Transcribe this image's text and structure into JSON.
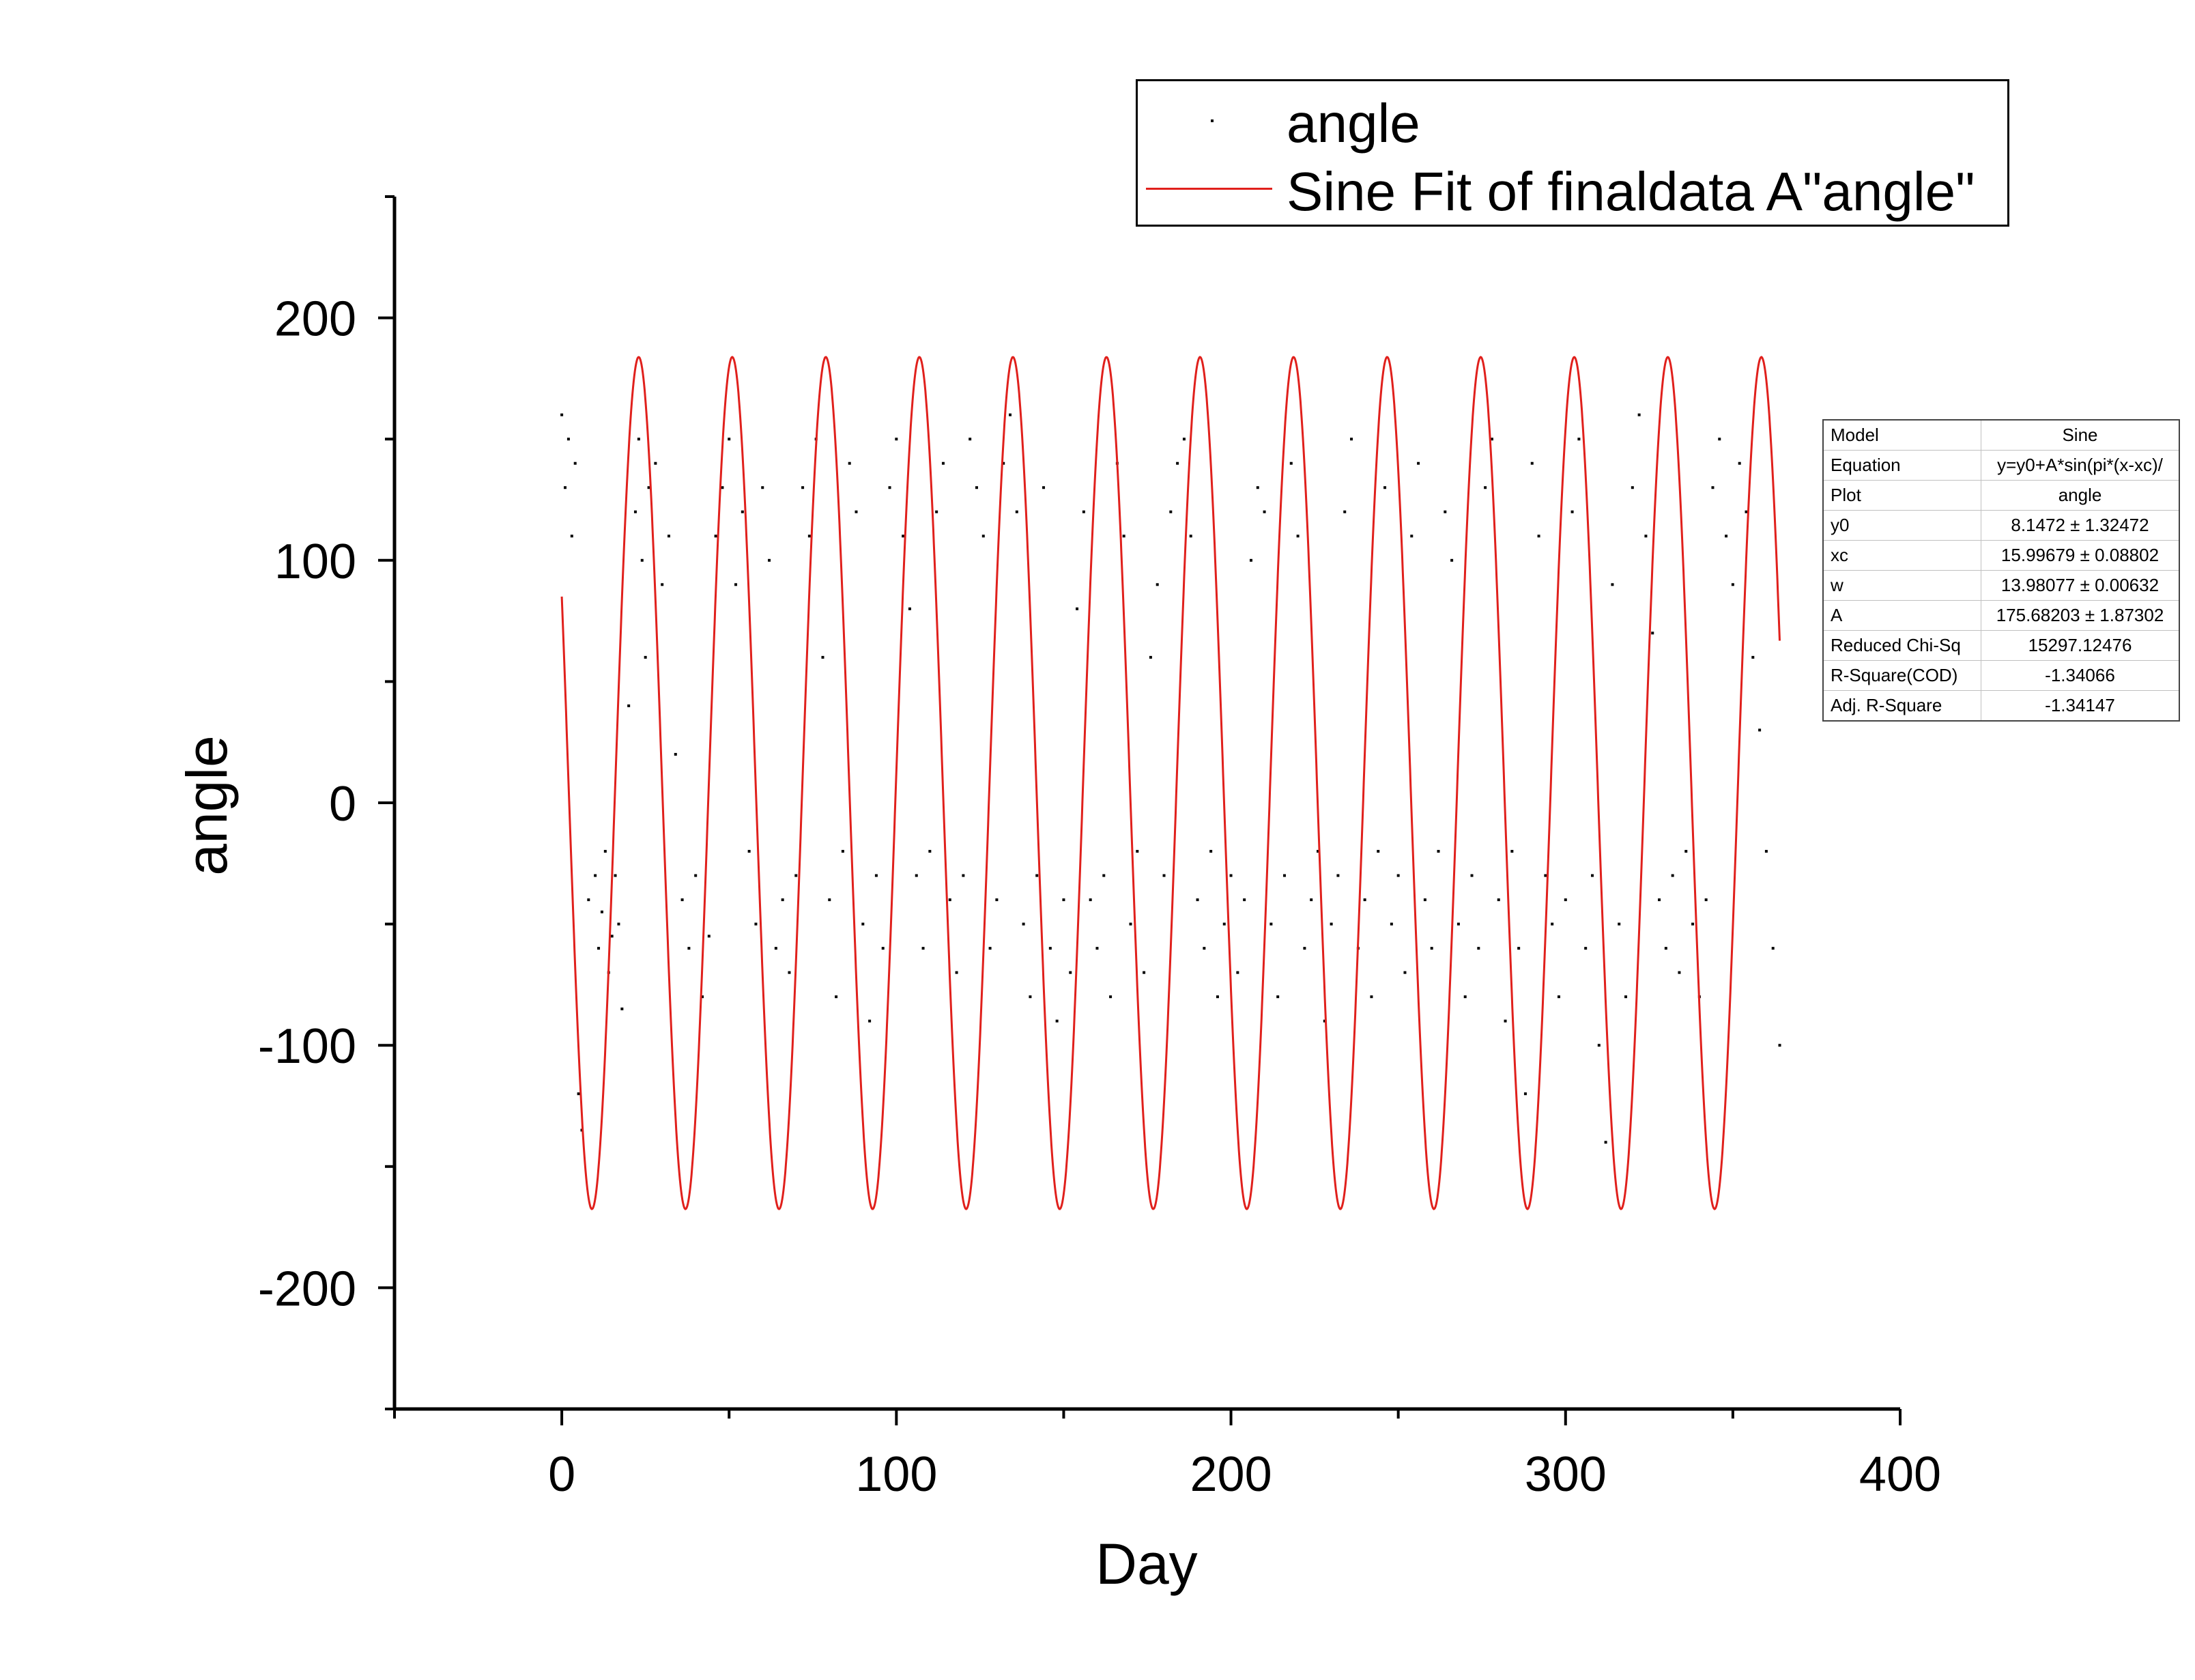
{
  "chart_data": {
    "type": "scatter",
    "xlabel": "Day",
    "ylabel": "angle",
    "xlim": [
      -50,
      400
    ],
    "ylim": [
      -250,
      250
    ],
    "x_ticks": [
      0,
      100,
      200,
      300,
      400
    ],
    "y_ticks": [
      -200,
      -100,
      0,
      100,
      200
    ],
    "grid": false,
    "legend_position": "top-right",
    "series": [
      {
        "name": "angle",
        "kind": "scatter",
        "color": "#000000",
        "description_note": "",
        "x_range": [
          0,
          364
        ],
        "points": [
          [
            0,
            160
          ],
          [
            1,
            130
          ],
          [
            2,
            150
          ],
          [
            3,
            110
          ],
          [
            4,
            140
          ],
          [
            5,
            -120
          ],
          [
            6,
            -135
          ],
          [
            8,
            -40
          ],
          [
            10,
            -30
          ],
          [
            11,
            -60
          ],
          [
            12,
            -45
          ],
          [
            13,
            -20
          ],
          [
            14,
            -70
          ],
          [
            15,
            -55
          ],
          [
            16,
            -30
          ],
          [
            17,
            -50
          ],
          [
            18,
            -85
          ],
          [
            20,
            40
          ],
          [
            22,
            120
          ],
          [
            23,
            150
          ],
          [
            24,
            100
          ],
          [
            25,
            60
          ],
          [
            26,
            130
          ],
          [
            28,
            140
          ],
          [
            30,
            90
          ],
          [
            32,
            110
          ],
          [
            34,
            20
          ],
          [
            36,
            -40
          ],
          [
            38,
            -60
          ],
          [
            40,
            -30
          ],
          [
            42,
            -80
          ],
          [
            44,
            -55
          ],
          [
            46,
            110
          ],
          [
            48,
            130
          ],
          [
            50,
            150
          ],
          [
            52,
            90
          ],
          [
            54,
            120
          ],
          [
            56,
            -20
          ],
          [
            58,
            -50
          ],
          [
            60,
            130
          ],
          [
            62,
            100
          ],
          [
            64,
            -60
          ],
          [
            66,
            -40
          ],
          [
            68,
            -70
          ],
          [
            70,
            -30
          ],
          [
            72,
            130
          ],
          [
            74,
            110
          ],
          [
            76,
            150
          ],
          [
            78,
            60
          ],
          [
            80,
            -40
          ],
          [
            82,
            -80
          ],
          [
            84,
            -20
          ],
          [
            86,
            140
          ],
          [
            88,
            120
          ],
          [
            90,
            -50
          ],
          [
            92,
            -90
          ],
          [
            94,
            -30
          ],
          [
            96,
            -60
          ],
          [
            98,
            130
          ],
          [
            100,
            150
          ],
          [
            102,
            110
          ],
          [
            104,
            80
          ],
          [
            106,
            -30
          ],
          [
            108,
            -60
          ],
          [
            110,
            -20
          ],
          [
            112,
            120
          ],
          [
            114,
            140
          ],
          [
            116,
            -40
          ],
          [
            118,
            -70
          ],
          [
            120,
            -30
          ],
          [
            122,
            150
          ],
          [
            124,
            130
          ],
          [
            126,
            110
          ],
          [
            128,
            -60
          ],
          [
            130,
            -40
          ],
          [
            132,
            140
          ],
          [
            134,
            160
          ],
          [
            136,
            120
          ],
          [
            138,
            -50
          ],
          [
            140,
            -80
          ],
          [
            142,
            -30
          ],
          [
            144,
            130
          ],
          [
            146,
            -60
          ],
          [
            148,
            -90
          ],
          [
            150,
            -40
          ],
          [
            152,
            -70
          ],
          [
            154,
            80
          ],
          [
            156,
            120
          ],
          [
            158,
            -40
          ],
          [
            160,
            -60
          ],
          [
            162,
            -30
          ],
          [
            164,
            -80
          ],
          [
            166,
            140
          ],
          [
            168,
            110
          ],
          [
            170,
            -50
          ],
          [
            172,
            -20
          ],
          [
            174,
            -70
          ],
          [
            176,
            60
          ],
          [
            178,
            90
          ],
          [
            180,
            -30
          ],
          [
            182,
            120
          ],
          [
            184,
            140
          ],
          [
            186,
            150
          ],
          [
            188,
            110
          ],
          [
            190,
            -40
          ],
          [
            192,
            -60
          ],
          [
            194,
            -20
          ],
          [
            196,
            -80
          ],
          [
            198,
            -50
          ],
          [
            200,
            -30
          ],
          [
            202,
            -70
          ],
          [
            204,
            -40
          ],
          [
            206,
            100
          ],
          [
            208,
            130
          ],
          [
            210,
            120
          ],
          [
            212,
            -50
          ],
          [
            214,
            -80
          ],
          [
            216,
            -30
          ],
          [
            218,
            140
          ],
          [
            220,
            110
          ],
          [
            222,
            -60
          ],
          [
            224,
            -40
          ],
          [
            226,
            -20
          ],
          [
            228,
            -90
          ],
          [
            230,
            -50
          ],
          [
            232,
            -30
          ],
          [
            234,
            120
          ],
          [
            236,
            150
          ],
          [
            238,
            -60
          ],
          [
            240,
            -40
          ],
          [
            242,
            -80
          ],
          [
            244,
            -20
          ],
          [
            246,
            130
          ],
          [
            248,
            -50
          ],
          [
            250,
            -30
          ],
          [
            252,
            -70
          ],
          [
            254,
            110
          ],
          [
            256,
            140
          ],
          [
            258,
            -40
          ],
          [
            260,
            -60
          ],
          [
            262,
            -20
          ],
          [
            264,
            120
          ],
          [
            266,
            100
          ],
          [
            268,
            -50
          ],
          [
            270,
            -80
          ],
          [
            272,
            -30
          ],
          [
            274,
            -60
          ],
          [
            276,
            130
          ],
          [
            278,
            150
          ],
          [
            280,
            -40
          ],
          [
            282,
            -90
          ],
          [
            284,
            -20
          ],
          [
            286,
            -60
          ],
          [
            288,
            -120
          ],
          [
            290,
            140
          ],
          [
            292,
            110
          ],
          [
            294,
            -30
          ],
          [
            296,
            -50
          ],
          [
            298,
            -80
          ],
          [
            300,
            -40
          ],
          [
            302,
            120
          ],
          [
            304,
            150
          ],
          [
            306,
            -60
          ],
          [
            308,
            -30
          ],
          [
            310,
            -100
          ],
          [
            312,
            -140
          ],
          [
            314,
            90
          ],
          [
            316,
            -50
          ],
          [
            318,
            -80
          ],
          [
            320,
            130
          ],
          [
            322,
            160
          ],
          [
            324,
            110
          ],
          [
            326,
            70
          ],
          [
            328,
            -40
          ],
          [
            330,
            -60
          ],
          [
            332,
            -30
          ],
          [
            334,
            -70
          ],
          [
            336,
            -20
          ],
          [
            338,
            -50
          ],
          [
            340,
            -80
          ],
          [
            342,
            -40
          ],
          [
            344,
            130
          ],
          [
            346,
            150
          ],
          [
            348,
            110
          ],
          [
            350,
            90
          ],
          [
            352,
            140
          ],
          [
            354,
            120
          ],
          [
            356,
            60
          ],
          [
            358,
            30
          ],
          [
            360,
            -20
          ],
          [
            362,
            -60
          ],
          [
            364,
            -100
          ]
        ]
      },
      {
        "name": "Sine Fit of finaldata A\"angle\"",
        "kind": "line",
        "color": "#e0201c",
        "function": "sine",
        "x_range": [
          0,
          364
        ]
      }
    ],
    "fit_params": {
      "y0": 8.1472,
      "xc": 15.99679,
      "w": 13.98077,
      "A": 175.68203
    }
  },
  "legend": {
    "items": [
      {
        "label": "angle",
        "marker": "dot"
      },
      {
        "label": "Sine Fit of finaldata A\"angle\"",
        "marker": "line"
      }
    ]
  },
  "stats_table": {
    "rows": [
      {
        "key": "Model",
        "value": "Sine"
      },
      {
        "key": "Equation",
        "value": "y=y0+A*sin(pi*(x-xc)/"
      },
      {
        "key": "Plot",
        "value": "angle"
      },
      {
        "key": "y0",
        "value": "8.1472 ± 1.32472"
      },
      {
        "key": "xc",
        "value": "15.99679 ± 0.08802"
      },
      {
        "key": "w",
        "value": "13.98077 ± 0.00632"
      },
      {
        "key": "A",
        "value": "175.68203 ± 1.87302"
      },
      {
        "key": "Reduced Chi-Sq",
        "value": "15297.12476"
      },
      {
        "key": "R-Square(COD)",
        "value": "-1.34066"
      },
      {
        "key": "Adj. R-Square",
        "value": "-1.34147"
      }
    ]
  }
}
